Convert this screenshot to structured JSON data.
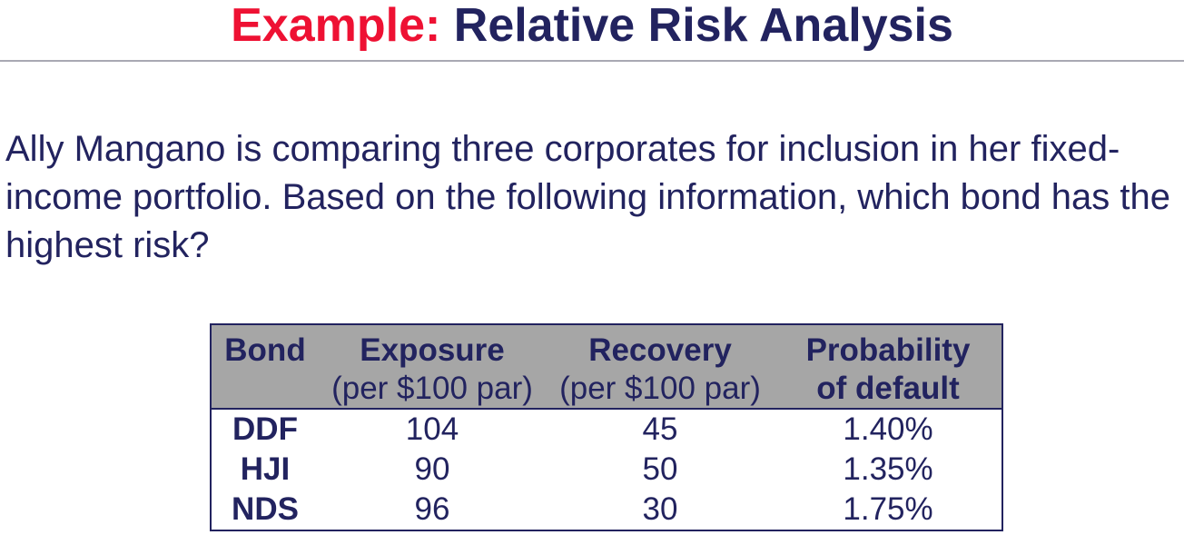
{
  "title": {
    "prefix": "Example:",
    "main": " Relative Risk Analysis",
    "prefix_color": "#ee1133",
    "main_color": "#22235f"
  },
  "question": {
    "text": "Ally Mangano is comparing three corporates for inclusion in her fixed-income portfolio. Based on the following information, which bond has the highest risk?",
    "color": "#22235f"
  },
  "table": {
    "header_bg": "#a6a6a6",
    "border_color": "#22235f",
    "columns": [
      {
        "line1": "Bond",
        "line2": ""
      },
      {
        "line1": "Exposure",
        "line2": "(per $100 par)"
      },
      {
        "line1": "Recovery",
        "line2": "(per $100 par)"
      },
      {
        "line1": "Probability",
        "line2": "of default"
      }
    ],
    "rows": [
      {
        "bond": "DDF",
        "exposure": "104",
        "recovery": "45",
        "probability": "1.40%"
      },
      {
        "bond": "HJI",
        "exposure": "90",
        "recovery": "50",
        "probability": "1.35%"
      },
      {
        "bond": "NDS",
        "exposure": "96",
        "recovery": "30",
        "probability": "1.75%"
      }
    ]
  }
}
